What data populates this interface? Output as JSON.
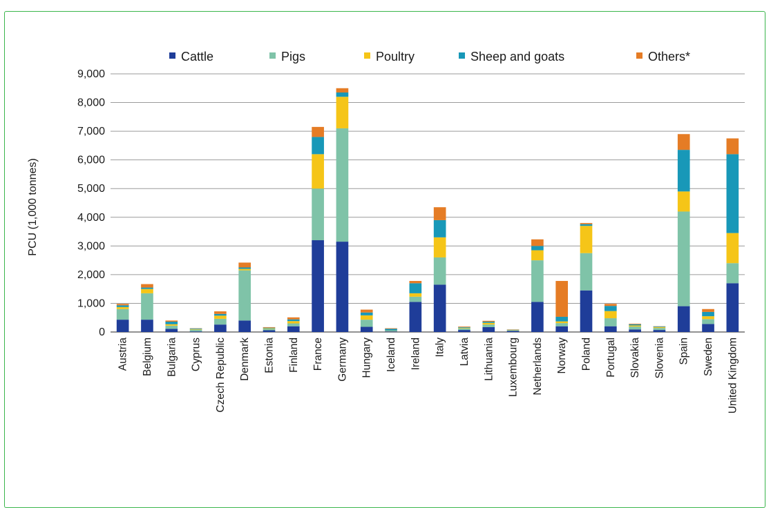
{
  "chart_data": {
    "type": "bar",
    "stacked": true,
    "title": "",
    "xlabel": "",
    "ylabel": "PCU (1,000 tonnes)",
    "ylim": [
      0,
      9000
    ],
    "yticks": [
      0,
      1000,
      2000,
      3000,
      4000,
      5000,
      6000,
      7000,
      8000,
      9000
    ],
    "ytick_labels": [
      "0",
      "1,000",
      "2,000",
      "3,000",
      "4,000",
      "5,000",
      "6,000",
      "7,000",
      "8,000",
      "9,000"
    ],
    "grid": true,
    "legend_position": "top",
    "categories": [
      "Austria",
      "Belgium",
      "Bulgaria",
      "Cyprus",
      "Czech Republic",
      "Denmark",
      "Estonia",
      "Finland",
      "France",
      "Germany",
      "Hungary",
      "Iceland",
      "Ireland",
      "Italy",
      "Latvia",
      "Lithuania",
      "Luxembourg",
      "Netherlands",
      "Norway",
      "Poland",
      "Portugal",
      "Slovakia",
      "Slovenia",
      "Spain",
      "Sweden",
      "United Kingdom"
    ],
    "series": [
      {
        "name": "Cattle",
        "color": "#1f3d99",
        "values": [
          430,
          430,
          110,
          20,
          260,
          400,
          60,
          200,
          3200,
          3150,
          180,
          20,
          1050,
          1650,
          70,
          170,
          40,
          1050,
          200,
          1450,
          200,
          90,
          70,
          900,
          280,
          1700
        ]
      },
      {
        "name": "Pigs",
        "color": "#7fc3a8",
        "values": [
          370,
          920,
          110,
          60,
          200,
          1750,
          50,
          100,
          1800,
          3950,
          250,
          20,
          180,
          950,
          60,
          90,
          20,
          1450,
          110,
          1300,
          280,
          100,
          70,
          3300,
          170,
          700
        ]
      },
      {
        "name": "Poultry",
        "color": "#f5c518",
        "values": [
          70,
          150,
          50,
          20,
          110,
          50,
          20,
          80,
          1200,
          1100,
          150,
          10,
          120,
          700,
          20,
          60,
          10,
          350,
          60,
          950,
          250,
          40,
          30,
          700,
          100,
          1050
        ]
      },
      {
        "name": "Sheep and goats",
        "color": "#1898b8",
        "values": [
          60,
          50,
          90,
          20,
          60,
          50,
          20,
          60,
          600,
          150,
          100,
          60,
          350,
          600,
          20,
          40,
          10,
          150,
          160,
          60,
          180,
          40,
          20,
          1450,
          150,
          2750
        ]
      },
      {
        "name": "Others*",
        "color": "#e57c25",
        "values": [
          50,
          120,
          40,
          10,
          90,
          170,
          20,
          70,
          350,
          150,
          100,
          20,
          80,
          450,
          20,
          30,
          10,
          230,
          1250,
          40,
          70,
          20,
          10,
          550,
          100,
          550
        ]
      }
    ]
  }
}
